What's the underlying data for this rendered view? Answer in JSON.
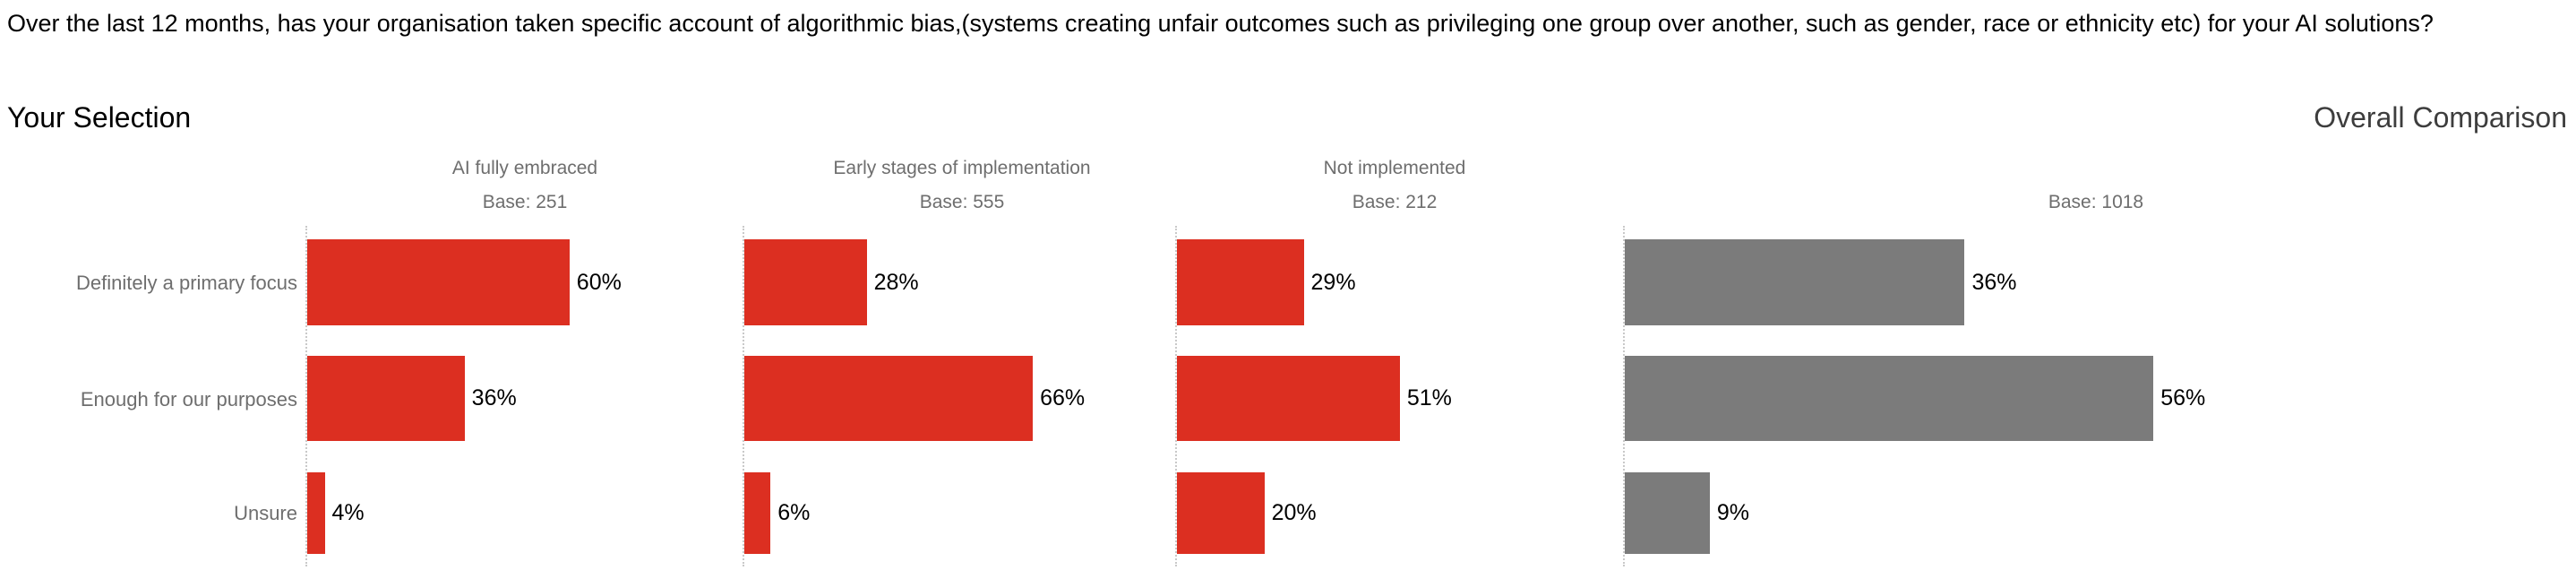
{
  "sections": {
    "left": "Your Selection",
    "right": "Overall Comparison"
  },
  "chart_data": {
    "type": "bar",
    "orientation": "horizontal",
    "title": "Over the last 12 months, has your organisation taken specific account of algorithmic bias,(systems creating unfair outcomes such as privileging one group over another, such as gender, race or ethnicity etc) for your AI solutions?",
    "categories": [
      "Definitely a primary focus",
      "Enough for our purposes",
      "Unsure"
    ],
    "value_unit": "%",
    "xlim": [
      0,
      100
    ],
    "grid": false,
    "legend": "none",
    "panels": [
      {
        "title": "AI fully embraced",
        "base_label": "Base: 251",
        "base": 251,
        "values": [
          60,
          36,
          4
        ],
        "labels": [
          "60%",
          "36%",
          "4%"
        ],
        "bar_color": "#dc2f21"
      },
      {
        "title": "Early stages of implementation",
        "base_label": "Base: 555",
        "base": 555,
        "values": [
          28,
          66,
          6
        ],
        "labels": [
          "28%",
          "66%",
          "6%"
        ],
        "bar_color": "#dc2f21"
      },
      {
        "title": "Not implemented",
        "base_label": "Base: 212",
        "base": 212,
        "values": [
          29,
          51,
          20
        ],
        "labels": [
          "29%",
          "51%",
          "20%"
        ],
        "bar_color": "#dc2f21"
      },
      {
        "title": "",
        "base_label": "Base: 1018",
        "base": 1018,
        "values": [
          36,
          56,
          9
        ],
        "labels": [
          "36%",
          "56%",
          "9%"
        ],
        "bar_color": "#7b7b7b"
      }
    ],
    "colors": {
      "selection_bar": "#dc2f21",
      "overall_bar": "#7b7b7b",
      "axis_line": "#c9c9c9",
      "muted_text": "#6e6e6e"
    }
  }
}
